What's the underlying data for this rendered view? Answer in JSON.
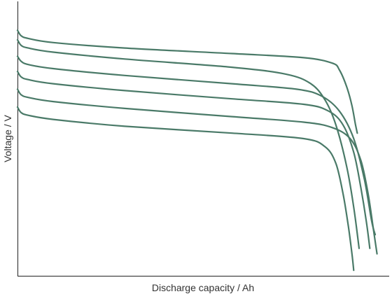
{
  "chart_data": {
    "type": "line",
    "title": "",
    "xlabel": "Discharge capacity / Ah",
    "ylabel": "Voltage / V",
    "xlim": [
      0,
      1.0
    ],
    "ylim": [
      0,
      1.0
    ],
    "grid": false,
    "legend": "none",
    "line_color": "#4a7a68",
    "series": [
      {
        "x": [
          0,
          0.01,
          0.03,
          0.1,
          0.3,
          0.6,
          0.8,
          0.88,
          0.9,
          0.92,
          0.935,
          0.945,
          0.95
        ],
        "y": [
          0.895,
          0.875,
          0.865,
          0.85,
          0.83,
          0.81,
          0.795,
          0.775,
          0.75,
          0.69,
          0.62,
          0.55,
          0.52
        ]
      },
      {
        "x": [
          0,
          0.01,
          0.03,
          0.1,
          0.3,
          0.6,
          0.75,
          0.82,
          0.86,
          0.89,
          0.92,
          0.94,
          0.955
        ],
        "y": [
          0.86,
          0.84,
          0.83,
          0.815,
          0.79,
          0.76,
          0.735,
          0.7,
          0.64,
          0.55,
          0.4,
          0.25,
          0.1
        ]
      },
      {
        "x": [
          0,
          0.01,
          0.03,
          0.1,
          0.3,
          0.6,
          0.78,
          0.85,
          0.9,
          0.94,
          0.97,
          0.99,
          1.0
        ],
        "y": [
          0.8,
          0.782,
          0.77,
          0.755,
          0.73,
          0.7,
          0.68,
          0.655,
          0.6,
          0.5,
          0.35,
          0.2,
          0.15
        ]
      },
      {
        "x": [
          0,
          0.01,
          0.03,
          0.1,
          0.3,
          0.6,
          0.8,
          0.87,
          0.91,
          0.94,
          0.96,
          0.975,
          0.985
        ],
        "y": [
          0.745,
          0.725,
          0.715,
          0.7,
          0.675,
          0.645,
          0.625,
          0.6,
          0.55,
          0.45,
          0.32,
          0.2,
          0.1
        ]
      },
      {
        "x": [
          0,
          0.01,
          0.03,
          0.1,
          0.3,
          0.6,
          0.8,
          0.88,
          0.93,
          0.96,
          0.98,
          0.995,
          1.005
        ],
        "y": [
          0.68,
          0.66,
          0.65,
          0.635,
          0.61,
          0.58,
          0.56,
          0.54,
          0.5,
          0.42,
          0.3,
          0.17,
          0.08
        ]
      },
      {
        "x": [
          0,
          0.01,
          0.03,
          0.1,
          0.3,
          0.6,
          0.8,
          0.86,
          0.89,
          0.91,
          0.925,
          0.935,
          0.94
        ],
        "y": [
          0.615,
          0.595,
          0.585,
          0.57,
          0.545,
          0.52,
          0.5,
          0.47,
          0.41,
          0.3,
          0.18,
          0.08,
          0.02
        ]
      }
    ]
  }
}
